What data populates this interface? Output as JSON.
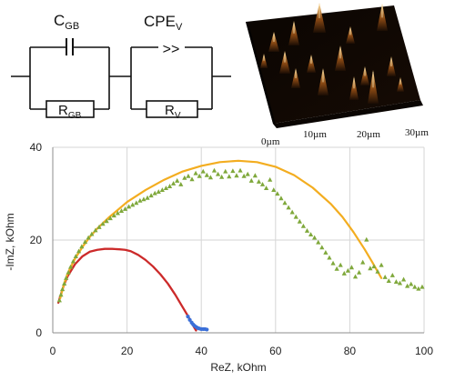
{
  "circuit": {
    "c_gb_main": "C",
    "c_gb_sub": "GB",
    "r_gb_main": "R",
    "r_gb_sub": "GB",
    "cpe_v_main": "CPE",
    "cpe_v_sub": "V",
    "r_v_main": "R",
    "r_v_sub": "V",
    "cpe_symbol": ">>"
  },
  "afm_image": {
    "colors": {
      "peak": "#f6c87a",
      "mid": "#8e4b14",
      "dark": "#1b0d04",
      "floor": "#000000"
    },
    "scale_labels": [
      "0µm",
      "10µm",
      "20µm",
      "30µm"
    ]
  },
  "chart_data": {
    "type": "scatter",
    "xlabel": "ReZ, kOhm",
    "ylabel": "-ImZ, kOhm",
    "xlim": [
      0,
      100
    ],
    "ylim": [
      0,
      40
    ],
    "x_ticks": [
      0,
      20,
      40,
      60,
      80,
      100
    ],
    "y_ticks": [
      0,
      20,
      40
    ],
    "grid": true,
    "colors": {
      "red_arc": "#cc2a2a",
      "blue_points": "#3a6fd8",
      "orange_arc": "#f3ad20",
      "green_points": "#7fa83b"
    },
    "fit_arcs": [
      {
        "color": "#cc2a2a",
        "x": [
          1.5,
          2,
          3,
          4,
          6,
          8,
          10,
          12,
          14,
          16,
          18,
          19.5,
          21,
          23,
          25,
          27,
          29,
          31,
          33,
          35,
          36.5,
          37.5,
          38.2,
          38.6
        ],
        "y": [
          6.5,
          7.8,
          10.3,
          12.2,
          14.8,
          16.5,
          17.5,
          17.9,
          18.1,
          18.1,
          18.0,
          17.9,
          17.6,
          16.8,
          15.7,
          14.3,
          12.6,
          10.6,
          8.2,
          5.5,
          3.5,
          2.0,
          1.0,
          0.5
        ]
      },
      {
        "color": "#f3ad20",
        "x": [
          2,
          3,
          4,
          6,
          8,
          10,
          12,
          15,
          20,
          25,
          30,
          35,
          40,
          45,
          50,
          55,
          60,
          65,
          70,
          75,
          78,
          81,
          84,
          86,
          87.5,
          88.5
        ],
        "y": [
          7.4,
          10.5,
          12.8,
          16.0,
          18.5,
          20.7,
          22.5,
          24.8,
          28.2,
          30.8,
          33.0,
          34.8,
          36.0,
          36.8,
          37.1,
          36.8,
          35.8,
          34.0,
          31.3,
          27.7,
          25.0,
          21.7,
          18.0,
          15.3,
          13.2,
          11.8
        ]
      }
    ],
    "series": [
      {
        "marker": "dot",
        "color": "#3a6fd8",
        "x": [
          36.4,
          36.9,
          37.4,
          37.8,
          38.2,
          38.7,
          39.1,
          39.5,
          40.0,
          40.5,
          41.0,
          41.5
        ],
        "y": [
          3.5,
          2.8,
          2.2,
          1.8,
          1.5,
          1.2,
          1.0,
          0.9,
          0.8,
          0.8,
          0.8,
          0.7
        ]
      },
      {
        "marker": "triangle",
        "color": "#7fa83b",
        "x": [
          1.8,
          2.2,
          2.6,
          3.1,
          3.6,
          4.2,
          4.8,
          5.5,
          6.2,
          7.0,
          7.8,
          8.7,
          9.6,
          10.5,
          11.5,
          12.5,
          13.5,
          14.5,
          15.5,
          16.5,
          17.5,
          18.5,
          19.5,
          20.5,
          21.5,
          22.5,
          23.5,
          24.5,
          25.5,
          26.5,
          27.5,
          28.5,
          29.5,
          30.5,
          31.5,
          32.5,
          33.5,
          34.5,
          35.5,
          36.5,
          37.5,
          38.5,
          39.5,
          40.5,
          41.5,
          42.5,
          43.5,
          44.5,
          45.5,
          46.5,
          47.5,
          48.5,
          49.5,
          50.5,
          51.5,
          52.5,
          53.5,
          54.5,
          55.5,
          56.5,
          57.5,
          58.5,
          59.5,
          60.5,
          61.5,
          62.5,
          63.5,
          64.5,
          65.5,
          66.5,
          67.5,
          68.5,
          69.5,
          70.5,
          71.5,
          72.5,
          73.5,
          74.5,
          75.5,
          76.5,
          77.5,
          78.5,
          79.5,
          80.5,
          81.5,
          82.5,
          83.5,
          84.5,
          85.5,
          86.5,
          87.5,
          88.5,
          89.5,
          90.5,
          91.5,
          92.5,
          93.5,
          94.5,
          95.5,
          96.5,
          97.5,
          98.5,
          99.5
        ],
        "y": [
          7.0,
          8.2,
          9.4,
          10.6,
          11.8,
          13.0,
          14.2,
          15.4,
          16.5,
          17.6,
          18.6,
          19.6,
          20.5,
          21.3,
          22.1,
          22.8,
          23.5,
          24.1,
          24.7,
          25.3,
          25.8,
          26.3,
          26.7,
          27.2,
          27.6,
          28.0,
          28.5,
          28.8,
          29.1,
          29.6,
          30.1,
          30.4,
          30.8,
          31.2,
          31.6,
          32.2,
          32.8,
          32.0,
          33.4,
          33.8,
          33.1,
          34.4,
          33.8,
          34.8,
          34.0,
          33.5,
          35.0,
          34.2,
          33.6,
          34.8,
          33.7,
          34.9,
          33.9,
          35.0,
          33.8,
          34.2,
          32.8,
          33.9,
          32.6,
          32.0,
          31.2,
          33.0,
          30.8,
          30.0,
          29.0,
          28.0,
          27.0,
          26.0,
          25.0,
          24.0,
          23.0,
          22.0,
          21.2,
          20.5,
          19.5,
          18.4,
          17.3,
          16.2,
          15.0,
          13.8,
          14.6,
          12.8,
          13.4,
          14.1,
          12.1,
          13.0,
          15.2,
          20.1,
          13.9,
          14.3,
          13.2,
          14.6,
          12.0,
          11.2,
          12.4,
          11.0,
          10.7,
          11.5,
          10.1,
          10.5,
          9.9,
          9.5,
          9.9
        ]
      }
    ]
  }
}
